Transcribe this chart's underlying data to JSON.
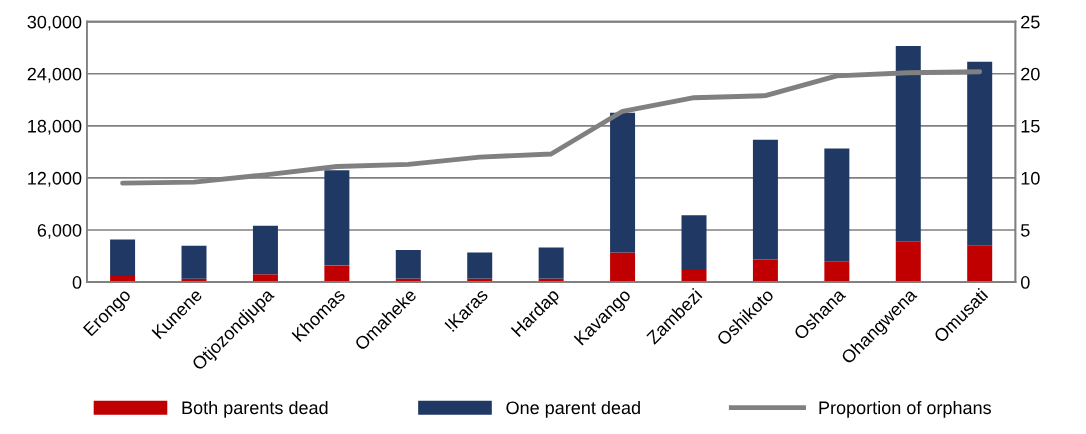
{
  "chart_data": {
    "type": "bar",
    "stacked": true,
    "categories": [
      "Erongo",
      "Kunene",
      "Otjozondjupa",
      "Khomas",
      "Omaheke",
      "!Karas",
      "Hardap",
      "Kavango",
      "Zambezi",
      "Oshikoto",
      "Oshana",
      "Ohangwena",
      "Omusati"
    ],
    "series": [
      {
        "name": "Both parents dead",
        "color": "#c00000",
        "values": [
          700,
          400,
          900,
          1900,
          400,
          400,
          400,
          3400,
          1400,
          2600,
          2400,
          4700,
          4200
        ]
      },
      {
        "name": "One parent dead",
        "color": "#1f3864",
        "values": [
          4200,
          3800,
          5600,
          11000,
          3300,
          3000,
          3600,
          16100,
          6300,
          13800,
          13000,
          22500,
          21200
        ]
      },
      {
        "name": "Proportion of orphans",
        "type": "line",
        "axis": "y2",
        "color": "#808080",
        "values": [
          9.5,
          9.6,
          10.3,
          11.1,
          11.3,
          12.0,
          12.3,
          16.4,
          17.7,
          17.9,
          19.8,
          20.1,
          20.2
        ]
      }
    ],
    "ylim": [
      0,
      30000
    ],
    "yticks": [
      {
        "value": 0,
        "label": "0"
      },
      {
        "value": 6000,
        "label": "6,000"
      },
      {
        "value": 12000,
        "label": "12,000"
      },
      {
        "value": 18000,
        "label": "18,000"
      },
      {
        "value": 24000,
        "label": "24,000"
      },
      {
        "value": 30000,
        "label": "30,000"
      }
    ],
    "y2lim": [
      0,
      25
    ],
    "y2ticks": [
      0,
      5,
      10,
      15,
      20,
      25
    ],
    "grid": "y",
    "legend": "bottom",
    "marker": "none",
    "line_style": "solid"
  }
}
